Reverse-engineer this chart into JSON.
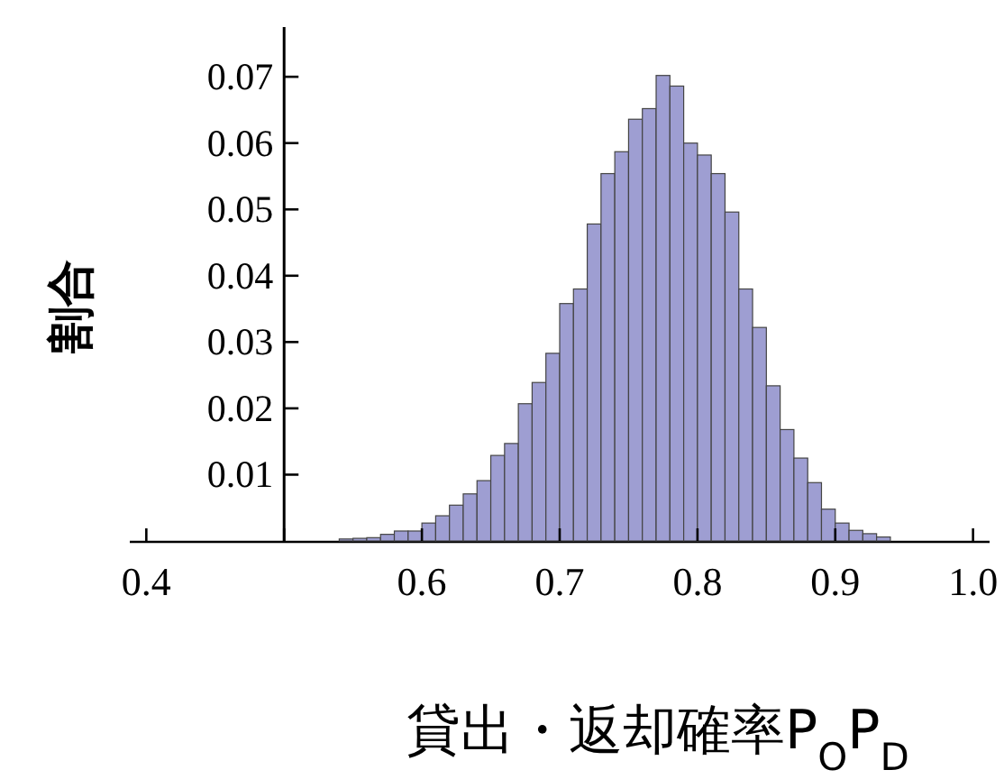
{
  "chart_data": {
    "type": "histogram",
    "ylabel": "割合",
    "xlabel": "貸出・返却確率P$_{O}$P$_{D}$",
    "bins": [
      0.54,
      0.55,
      0.56,
      0.57,
      0.58,
      0.59,
      0.6,
      0.61,
      0.62,
      0.63,
      0.64,
      0.65,
      0.66,
      0.67,
      0.68,
      0.69,
      0.7,
      0.71,
      0.72,
      0.73,
      0.74,
      0.75,
      0.76,
      0.77,
      0.78,
      0.79,
      0.8,
      0.81,
      0.82,
      0.83,
      0.84,
      0.85,
      0.86,
      0.87,
      0.88,
      0.89,
      0.9,
      0.91,
      0.92,
      0.93,
      0.94
    ],
    "values": [
      0.0003,
      0.0004,
      0.0005,
      0.001,
      0.0015,
      0.0015,
      0.0027,
      0.0038,
      0.0054,
      0.0071,
      0.0091,
      0.0129,
      0.0147,
      0.0207,
      0.0239,
      0.0283,
      0.0358,
      0.038,
      0.0478,
      0.0554,
      0.0587,
      0.0636,
      0.0652,
      0.0702,
      0.0686,
      0.06,
      0.0582,
      0.0554,
      0.0496,
      0.038,
      0.0322,
      0.0234,
      0.0168,
      0.0125,
      0.0088,
      0.0048,
      0.0027,
      0.0016,
      0.0011,
      0.0006
    ],
    "color": "#9e9ed2",
    "xlim": [
      0.388,
      1.012
    ],
    "ylim": [
      0,
      0.0775
    ],
    "xticks": [
      0.4,
      {
        "value": 0.5,
        "label": null
      },
      0.6,
      0.7,
      0.8,
      0.9,
      {
        "value": 1.0,
        "label": "1.0"
      }
    ],
    "yticks": [
      0.01,
      0.02,
      0.03,
      0.04,
      0.05,
      0.06,
      0.07
    ]
  }
}
